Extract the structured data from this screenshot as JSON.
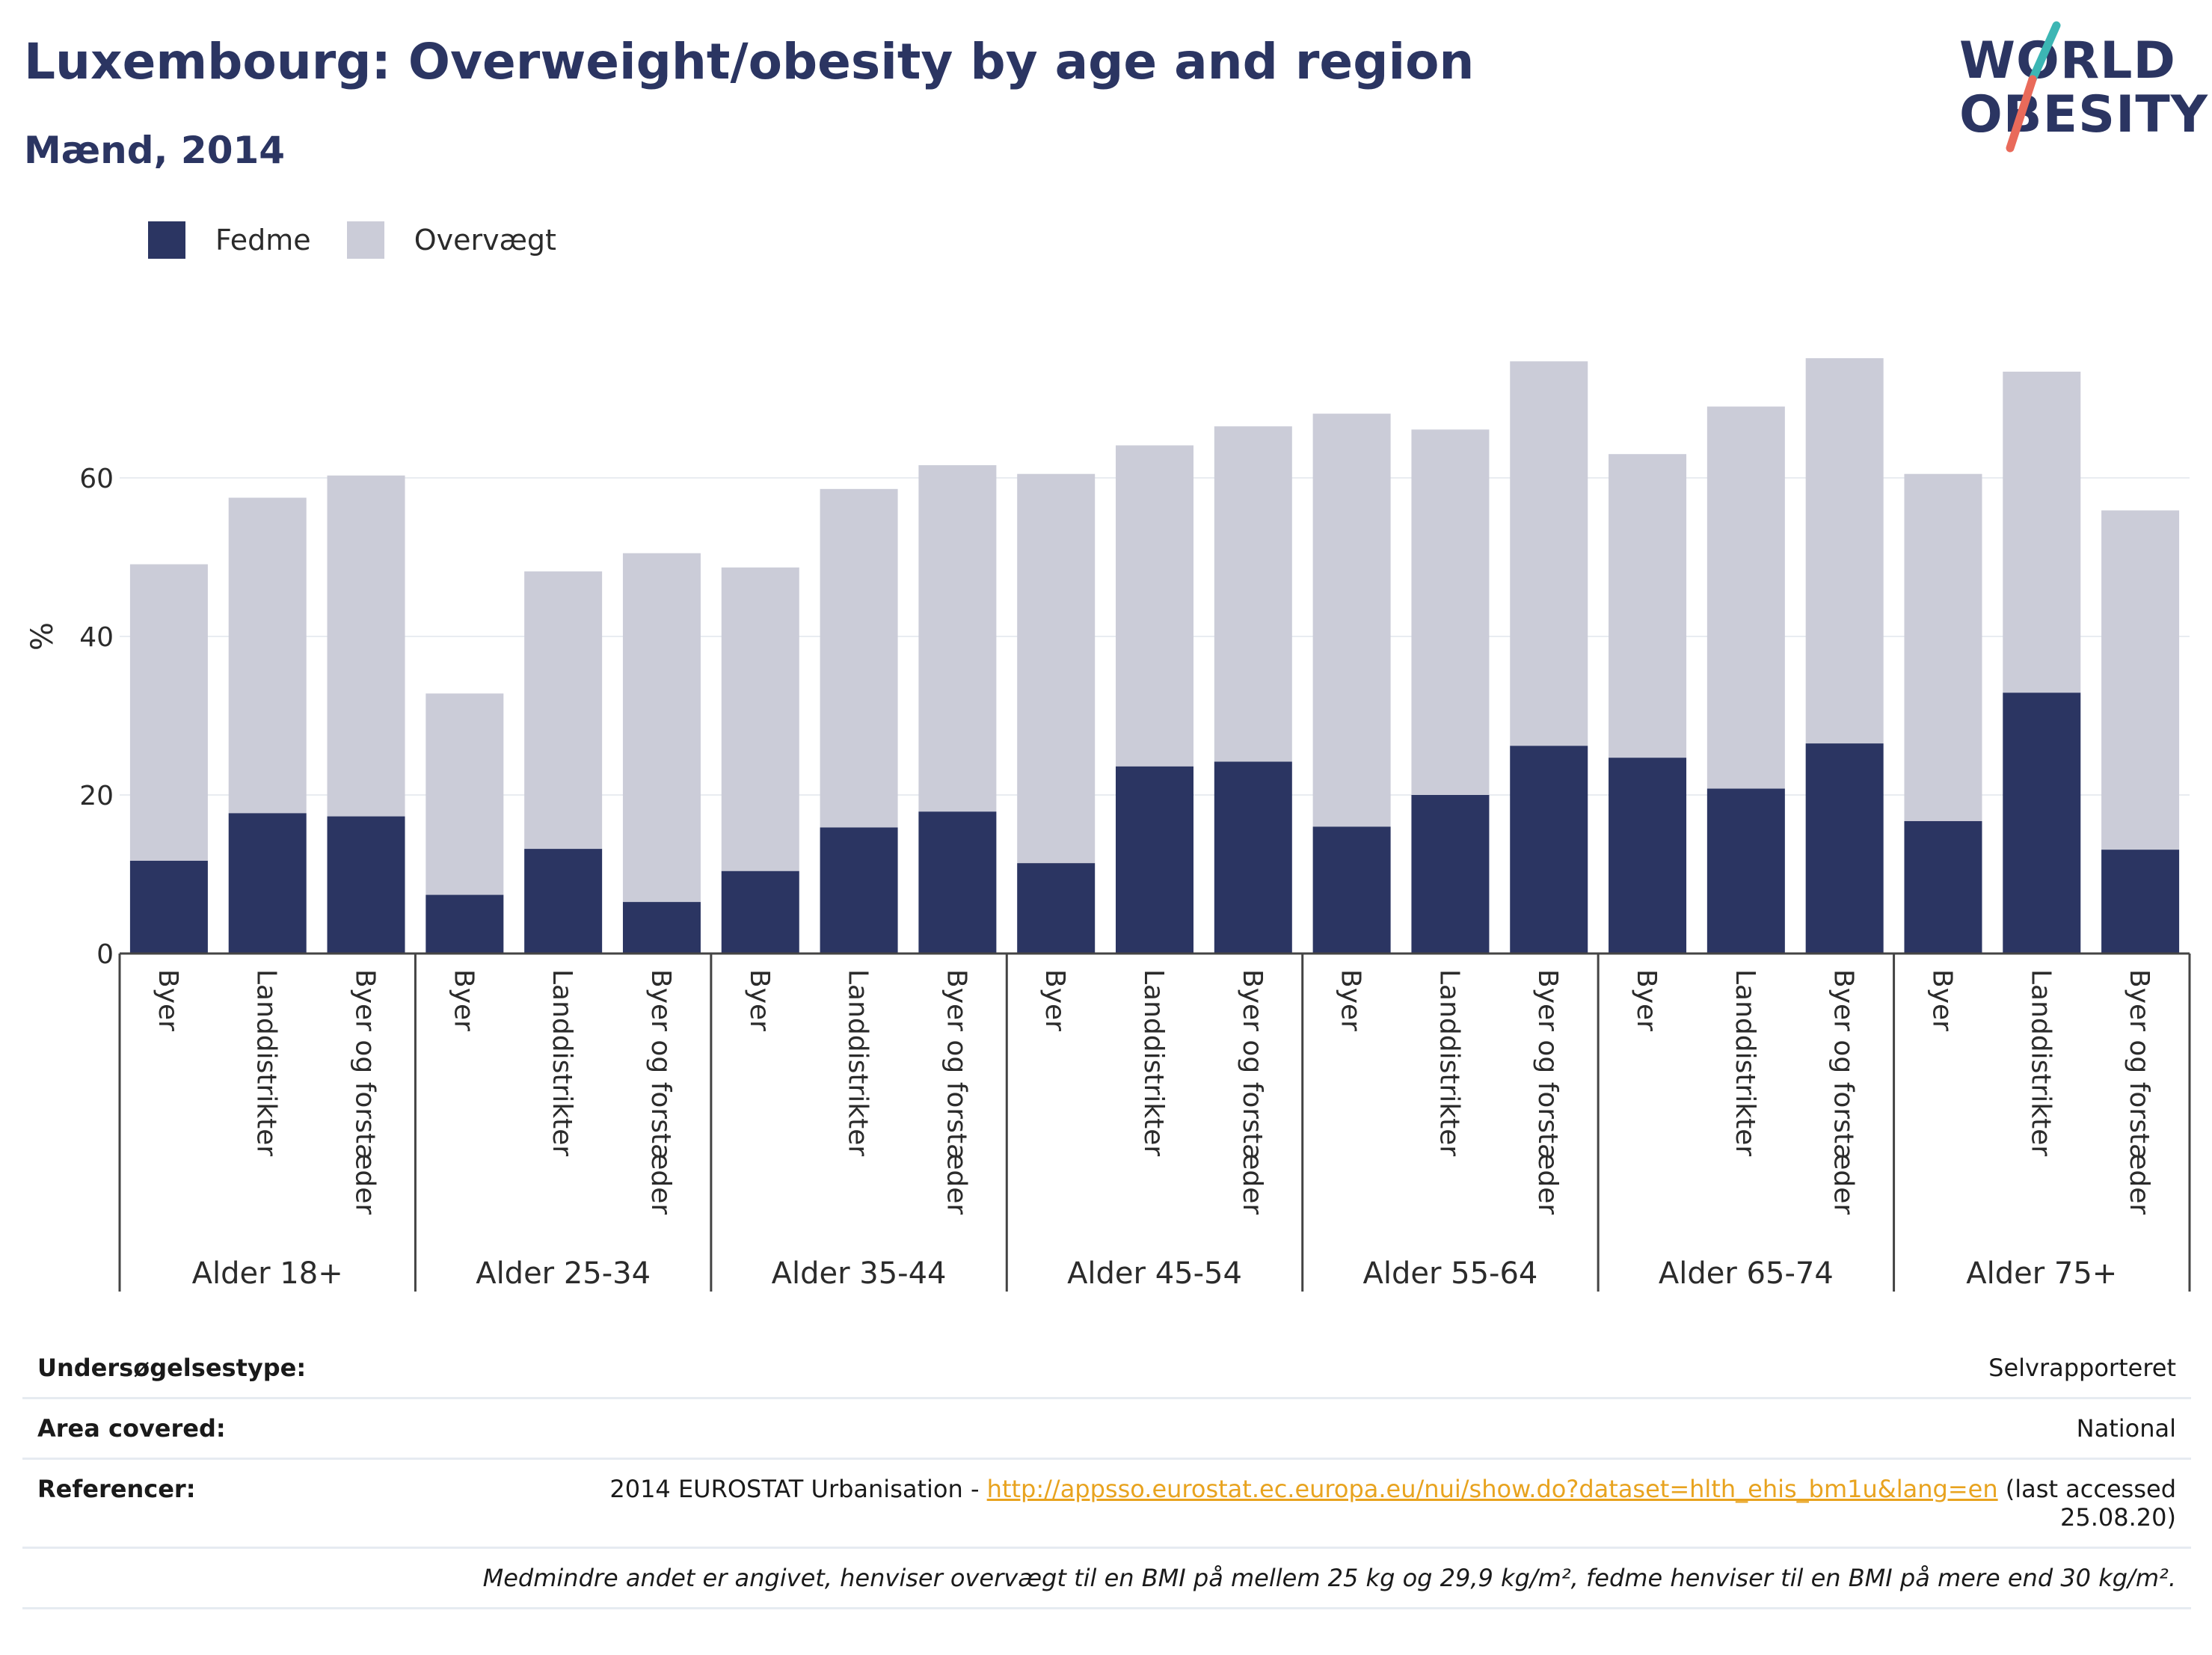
{
  "title": "Luxembourg: Overweight/obesity by age and region",
  "subtitle": "Mænd, 2014",
  "logo": {
    "line1": "WORLD",
    "line2": "OBESITY"
  },
  "colors": {
    "fedme": "#2b3562",
    "overvaegt": "#cbccd8",
    "title": "#2b3562",
    "link": "#e8a31f",
    "logo_slash_teal": "#3cb6b4",
    "logo_slash_red": "#e96a5a"
  },
  "legend": [
    {
      "label": "Fedme",
      "color": "#2b3562"
    },
    {
      "label": "Overvægt",
      "color": "#cbccd8"
    }
  ],
  "chart_data": {
    "type": "bar",
    "stacked": true,
    "ylabel": "%",
    "ylim": [
      0,
      80
    ],
    "yticks": [
      0,
      20,
      40,
      60
    ],
    "grid": true,
    "legend_position": "top-left",
    "categories": [
      {
        "group": "Alder 18+",
        "label": "Byer"
      },
      {
        "group": "Alder 18+",
        "label": "Landdistrikter"
      },
      {
        "group": "Alder 18+",
        "label": "Byer og forstæder"
      },
      {
        "group": "Alder 25-34",
        "label": "Byer"
      },
      {
        "group": "Alder 25-34",
        "label": "Landdistrikter"
      },
      {
        "group": "Alder 25-34",
        "label": "Byer og forstæder"
      },
      {
        "group": "Alder 35-44",
        "label": "Byer"
      },
      {
        "group": "Alder 35-44",
        "label": "Landdistrikter"
      },
      {
        "group": "Alder 35-44",
        "label": "Byer og forstæder"
      },
      {
        "group": "Alder 45-54",
        "label": "Byer"
      },
      {
        "group": "Alder 45-54",
        "label": "Landdistrikter"
      },
      {
        "group": "Alder 45-54",
        "label": "Byer og forstæder"
      },
      {
        "group": "Alder 55-64",
        "label": "Byer"
      },
      {
        "group": "Alder 55-64",
        "label": "Landdistrikter"
      },
      {
        "group": "Alder 55-64",
        "label": "Byer og forstæder"
      },
      {
        "group": "Alder 65-74",
        "label": "Byer"
      },
      {
        "group": "Alder 65-74",
        "label": "Landdistrikter"
      },
      {
        "group": "Alder 65-74",
        "label": "Byer og forstæder"
      },
      {
        "group": "Alder 75+",
        "label": "Byer"
      },
      {
        "group": "Alder 75+",
        "label": "Landdistrikter"
      },
      {
        "group": "Alder 75+",
        "label": "Byer og forstæder"
      }
    ],
    "groups": [
      "Alder 18+",
      "Alder 25-34",
      "Alder 35-44",
      "Alder 45-54",
      "Alder 55-64",
      "Alder 65-74",
      "Alder 75+"
    ],
    "series": [
      {
        "name": "Fedme",
        "values": [
          11.7,
          17.7,
          17.3,
          7.4,
          13.2,
          6.5,
          10.4,
          15.9,
          17.9,
          11.4,
          23.6,
          24.2,
          16.0,
          20.0,
          26.2,
          24.7,
          20.8,
          26.5,
          16.7,
          32.9,
          13.1
        ]
      },
      {
        "name": "Overvægt",
        "values": [
          37.4,
          39.8,
          43.0,
          25.4,
          35.0,
          44.0,
          38.3,
          42.7,
          43.7,
          49.1,
          40.5,
          42.3,
          52.1,
          46.1,
          48.5,
          38.3,
          48.2,
          48.6,
          43.8,
          40.5,
          42.8
        ]
      }
    ]
  },
  "info": {
    "survey_type_label": "Undersøgelsestype:",
    "survey_type_value": "Selvrapporteret",
    "area_label": "Area covered:",
    "area_value": "National",
    "references_label": "Referencer:",
    "references_prefix": "2014 EUROSTAT Urbanisation - ",
    "references_link": "http://appsso.eurostat.ec.europa.eu/nui/show.do?dataset=hlth_ehis_bm1u&lang=en",
    "references_suffix": " (last accessed",
    "references_date": "25.08.20)",
    "note": "Medmindre andet er angivet, henviser overvægt til en BMI på mellem 25 kg og 29,9 kg/m², fedme henviser til en BMI på mere end 30 kg/m²."
  }
}
